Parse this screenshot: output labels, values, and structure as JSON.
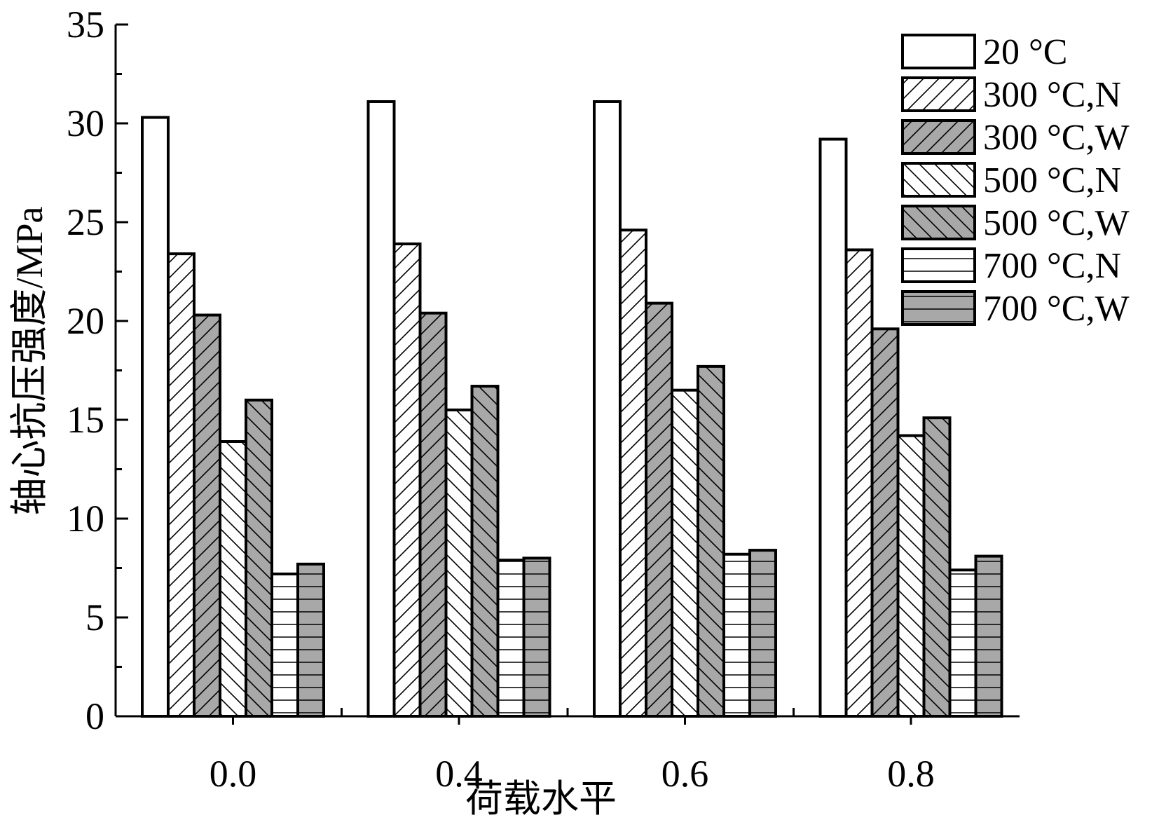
{
  "chart_data": {
    "type": "bar",
    "title": "",
    "xlabel": "荷载水平",
    "ylabel": "轴心抗压强度/MPa",
    "categories": [
      "0.0",
      "0.4",
      "0.6",
      "0.8"
    ],
    "ylim": [
      0,
      35
    ],
    "yticks": [
      0,
      5,
      10,
      15,
      20,
      25,
      30,
      35
    ],
    "grid": false,
    "legend_position": "top-right",
    "series": [
      {
        "name": "20 °C",
        "values": [
          30.3,
          31.1,
          31.1,
          29.2
        ],
        "fill": "#ffffff",
        "hatch": "none"
      },
      {
        "name": "300 °C,N",
        "values": [
          23.4,
          23.9,
          24.6,
          23.6
        ],
        "fill": "#ffffff",
        "hatch": "diag-up"
      },
      {
        "name": "300 °C,W",
        "values": [
          20.3,
          20.4,
          20.9,
          19.6
        ],
        "fill": "#a8a8a8",
        "hatch": "diag-up"
      },
      {
        "name": "500 °C,N",
        "values": [
          13.9,
          15.5,
          16.5,
          14.2
        ],
        "fill": "#ffffff",
        "hatch": "diag-down"
      },
      {
        "name": "500 °C,W",
        "values": [
          16.0,
          16.7,
          17.7,
          15.1
        ],
        "fill": "#a8a8a8",
        "hatch": "diag-down"
      },
      {
        "name": "700 °C,N",
        "values": [
          7.2,
          7.9,
          8.2,
          7.4
        ],
        "fill": "#ffffff",
        "hatch": "horizontal"
      },
      {
        "name": "700 °C,W",
        "values": [
          7.7,
          8.0,
          8.4,
          8.1
        ],
        "fill": "#a8a8a8",
        "hatch": "horizontal"
      }
    ]
  }
}
